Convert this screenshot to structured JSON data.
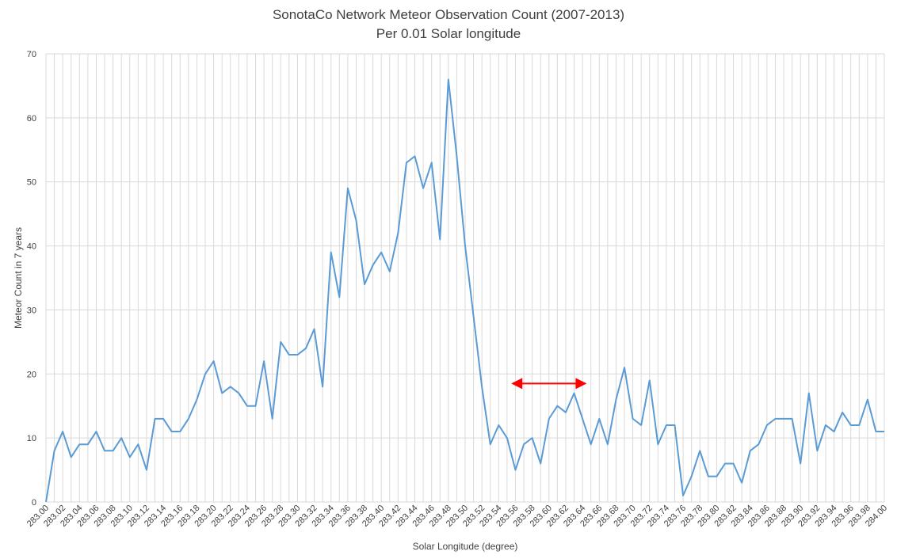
{
  "chart_data": {
    "type": "line",
    "title": "SonotaCo Network Meteor Observation Count (2007-2013)",
    "subtitle": "Per 0.01 Solar longitude",
    "xlabel": "Solar Longitude (degree)",
    "ylabel": "Meteor Count in 7 years",
    "ylim": [
      0,
      70
    ],
    "yticks": [
      0,
      10,
      20,
      30,
      40,
      50,
      60,
      70
    ],
    "grid": true,
    "legend": "none",
    "colors": {
      "line": "#5b9bd5",
      "arrow": "#ff0000",
      "grid": "#d9d9d9"
    },
    "x_tick_labels": [
      "283.00",
      "283.02",
      "283.04",
      "283.06",
      "283.08",
      "283.10",
      "283.12",
      "283.14",
      "283.16",
      "283.18",
      "283.20",
      "283.22",
      "283.24",
      "283.26",
      "283.28",
      "283.30",
      "283.32",
      "283.34",
      "283.36",
      "283.38",
      "283.40",
      "283.42",
      "283.44",
      "283.46",
      "283.48",
      "283.50",
      "283.52",
      "283.54",
      "283.56",
      "283.58",
      "283.60",
      "283.62",
      "283.64",
      "283.66",
      "283.68",
      "283.70",
      "283.72",
      "283.74",
      "283.76",
      "283.78",
      "283.80",
      "283.82",
      "283.84",
      "283.86",
      "283.88",
      "283.90",
      "283.92",
      "283.94",
      "283.96",
      "283.98",
      "284.00"
    ],
    "x": [
      283.0,
      283.01,
      283.02,
      283.03,
      283.04,
      283.05,
      283.06,
      283.07,
      283.08,
      283.09,
      283.1,
      283.11,
      283.12,
      283.13,
      283.14,
      283.15,
      283.16,
      283.17,
      283.18,
      283.19,
      283.2,
      283.21,
      283.22,
      283.23,
      283.24,
      283.25,
      283.26,
      283.27,
      283.28,
      283.29,
      283.3,
      283.31,
      283.32,
      283.33,
      283.34,
      283.35,
      283.36,
      283.37,
      283.38,
      283.39,
      283.4,
      283.41,
      283.42,
      283.43,
      283.44,
      283.45,
      283.46,
      283.47,
      283.48,
      283.49,
      283.5,
      283.51,
      283.52,
      283.53,
      283.54,
      283.55,
      283.56,
      283.57,
      283.58,
      283.59,
      283.6,
      283.61,
      283.62,
      283.63,
      283.64,
      283.65,
      283.66,
      283.67,
      283.68,
      283.69,
      283.7,
      283.71,
      283.72,
      283.73,
      283.74,
      283.75,
      283.76,
      283.77,
      283.78,
      283.79,
      283.8,
      283.81,
      283.82,
      283.83,
      283.84,
      283.85,
      283.86,
      283.87,
      283.88,
      283.89,
      283.9,
      283.91,
      283.92,
      283.93,
      283.94,
      283.95,
      283.96,
      283.97,
      283.98,
      283.99,
      284.0
    ],
    "series": [
      {
        "values": [
          0,
          8,
          11,
          7,
          9,
          9,
          11,
          8,
          8,
          10,
          7,
          9,
          5,
          13,
          13,
          11,
          11,
          13,
          16,
          20,
          22,
          17,
          18,
          17,
          15,
          15,
          22,
          13,
          25,
          23,
          23,
          24,
          27,
          18,
          39,
          32,
          49,
          44,
          34,
          37,
          39,
          36,
          42,
          53,
          54,
          49,
          53,
          41,
          66,
          54,
          40,
          29,
          18,
          9,
          12,
          10,
          5,
          9,
          10,
          6,
          13,
          15,
          14,
          17,
          13,
          9,
          13,
          9,
          16,
          21,
          13,
          12,
          19,
          9,
          12,
          12,
          1,
          4,
          8,
          4,
          4,
          6,
          6,
          3,
          8,
          9,
          12,
          13,
          13,
          13,
          6,
          17,
          8,
          12,
          11,
          14,
          12,
          12,
          16,
          11,
          11
        ]
      }
    ],
    "annotations": [
      {
        "type": "double-arrow",
        "x_start": 283.555,
        "x_end": 283.645,
        "y": 18.5
      }
    ]
  }
}
